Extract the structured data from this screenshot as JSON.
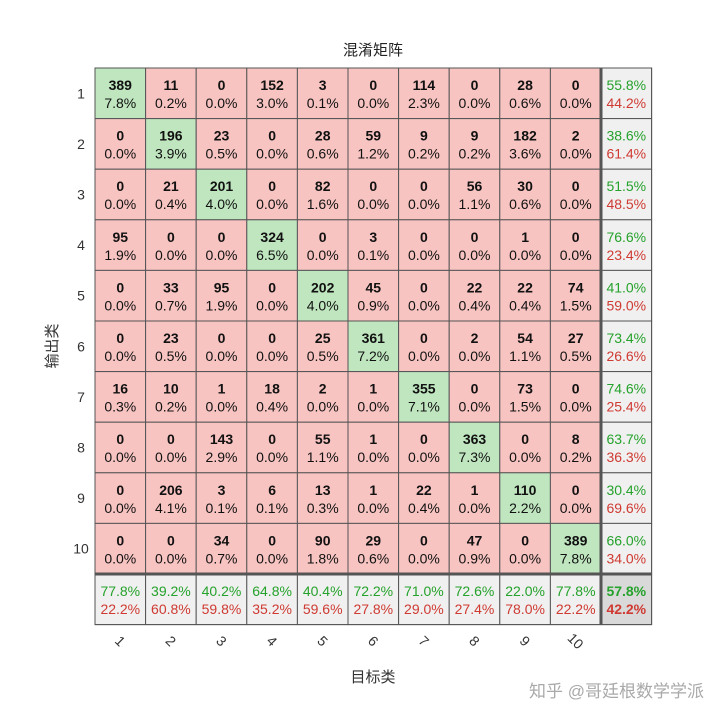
{
  "chart_data": {
    "type": "heatmap",
    "title": "混淆矩阵",
    "xlabel": "目标类",
    "ylabel": "输出类",
    "x_ticks": [
      "1",
      "2",
      "3",
      "4",
      "5",
      "6",
      "7",
      "8",
      "9",
      "10"
    ],
    "y_ticks": [
      "1",
      "2",
      "3",
      "4",
      "5",
      "6",
      "7",
      "8",
      "9",
      "10"
    ],
    "counts": [
      [
        389,
        11,
        0,
        152,
        3,
        0,
        114,
        0,
        28,
        0
      ],
      [
        0,
        196,
        23,
        0,
        28,
        59,
        9,
        9,
        182,
        2
      ],
      [
        0,
        21,
        201,
        0,
        82,
        0,
        0,
        56,
        30,
        0
      ],
      [
        95,
        0,
        0,
        324,
        0,
        3,
        0,
        0,
        1,
        0
      ],
      [
        0,
        33,
        95,
        0,
        202,
        45,
        0,
        22,
        22,
        74
      ],
      [
        0,
        23,
        0,
        0,
        25,
        361,
        0,
        2,
        54,
        27
      ],
      [
        16,
        10,
        1,
        18,
        2,
        1,
        355,
        0,
        73,
        0
      ],
      [
        0,
        0,
        143,
        0,
        55,
        1,
        0,
        363,
        0,
        8
      ],
      [
        0,
        206,
        3,
        6,
        13,
        1,
        22,
        1,
        110,
        0
      ],
      [
        0,
        0,
        34,
        0,
        90,
        29,
        0,
        47,
        0,
        389
      ]
    ],
    "percents": [
      [
        "7.8%",
        "0.2%",
        "0.0%",
        "3.0%",
        "0.1%",
        "0.0%",
        "2.3%",
        "0.0%",
        "0.6%",
        "0.0%"
      ],
      [
        "0.0%",
        "3.9%",
        "0.5%",
        "0.0%",
        "0.6%",
        "1.2%",
        "0.2%",
        "0.2%",
        "3.6%",
        "0.0%"
      ],
      [
        "0.0%",
        "0.4%",
        "4.0%",
        "0.0%",
        "1.6%",
        "0.0%",
        "0.0%",
        "1.1%",
        "0.6%",
        "0.0%"
      ],
      [
        "1.9%",
        "0.0%",
        "0.0%",
        "6.5%",
        "0.0%",
        "0.1%",
        "0.0%",
        "0.0%",
        "0.0%",
        "0.0%"
      ],
      [
        "0.0%",
        "0.7%",
        "1.9%",
        "0.0%",
        "4.0%",
        "0.9%",
        "0.0%",
        "0.4%",
        "0.4%",
        "1.5%"
      ],
      [
        "0.0%",
        "0.5%",
        "0.0%",
        "0.0%",
        "0.5%",
        "7.2%",
        "0.0%",
        "0.0%",
        "1.1%",
        "0.5%"
      ],
      [
        "0.3%",
        "0.2%",
        "0.0%",
        "0.4%",
        "0.0%",
        "0.0%",
        "7.1%",
        "0.0%",
        "1.5%",
        "0.0%"
      ],
      [
        "0.0%",
        "0.0%",
        "2.9%",
        "0.0%",
        "1.1%",
        "0.0%",
        "0.0%",
        "7.3%",
        "0.0%",
        "0.2%"
      ],
      [
        "0.0%",
        "4.1%",
        "0.1%",
        "0.1%",
        "0.3%",
        "0.0%",
        "0.4%",
        "0.0%",
        "2.2%",
        "0.0%"
      ],
      [
        "0.0%",
        "0.0%",
        "0.7%",
        "0.0%",
        "1.8%",
        "0.6%",
        "0.0%",
        "0.9%",
        "0.0%",
        "7.8%"
      ]
    ],
    "row_summary": [
      [
        "55.8%",
        "44.2%"
      ],
      [
        "38.6%",
        "61.4%"
      ],
      [
        "51.5%",
        "48.5%"
      ],
      [
        "76.6%",
        "23.4%"
      ],
      [
        "41.0%",
        "59.0%"
      ],
      [
        "73.4%",
        "26.6%"
      ],
      [
        "74.6%",
        "25.4%"
      ],
      [
        "63.7%",
        "36.3%"
      ],
      [
        "30.4%",
        "69.6%"
      ],
      [
        "66.0%",
        "34.0%"
      ]
    ],
    "col_summary": [
      [
        "77.8%",
        "22.2%"
      ],
      [
        "39.2%",
        "60.8%"
      ],
      [
        "40.2%",
        "59.8%"
      ],
      [
        "64.8%",
        "35.2%"
      ],
      [
        "40.4%",
        "59.6%"
      ],
      [
        "72.2%",
        "27.8%"
      ],
      [
        "71.0%",
        "29.0%"
      ],
      [
        "72.6%",
        "27.4%"
      ],
      [
        "22.0%",
        "78.0%"
      ],
      [
        "77.8%",
        "22.2%"
      ]
    ],
    "overall": [
      "57.8%",
      "42.2%"
    ],
    "colors": {
      "correct_cell": "#bfe6bf",
      "incorrect_cell": "#f7c4c1",
      "summary_cell": "#f0f0f0",
      "overall_cell": "#d9d9d9",
      "good_text": "#25a22b",
      "bad_text": "#cf3a32",
      "grid_line": "#555555"
    }
  },
  "watermark": "知乎 @哥廷根数学学派"
}
